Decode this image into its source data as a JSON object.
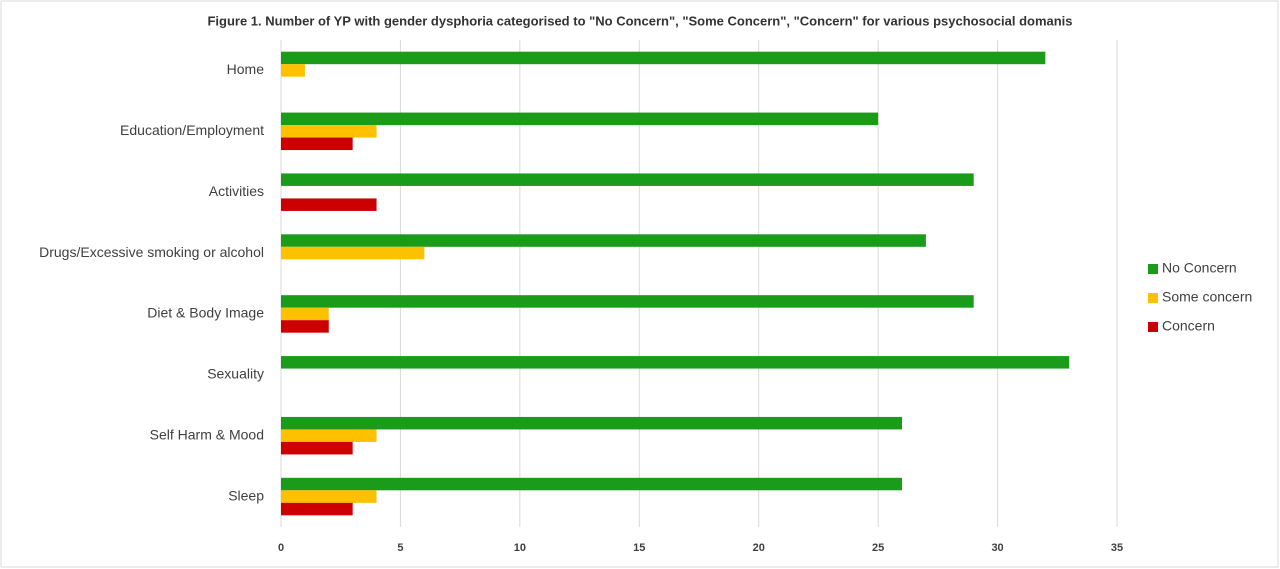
{
  "chart_data": {
    "type": "bar",
    "orientation": "horizontal",
    "title": "Figure 1. Number of YP with gender dysphoria categorised to \"No Concern\", \"Some Concern\", \"Concern\" for various psychosocial domanis",
    "categories": [
      "Home",
      "Education/Employment",
      "Activities",
      "Drugs/Excessive smoking or alcohol",
      "Diet & Body Image",
      "Sexuality",
      "Self Harm & Mood",
      "Sleep"
    ],
    "series": [
      {
        "name": "No Concern",
        "color": "#1a9c1a",
        "values": [
          32,
          25,
          29,
          27,
          29,
          33,
          26,
          26
        ]
      },
      {
        "name": "Some concern",
        "color": "#ffc000",
        "values": [
          1,
          4,
          0,
          6,
          2,
          0,
          4,
          4
        ]
      },
      {
        "name": "Concern",
        "color": "#cc0000",
        "values": [
          0,
          3,
          4,
          0,
          2,
          0,
          3,
          3
        ]
      }
    ],
    "xlim": [
      0,
      35
    ],
    "xticks": [
      0,
      5,
      10,
      15,
      20,
      25,
      30,
      35
    ],
    "grid": true,
    "legend": "right"
  }
}
